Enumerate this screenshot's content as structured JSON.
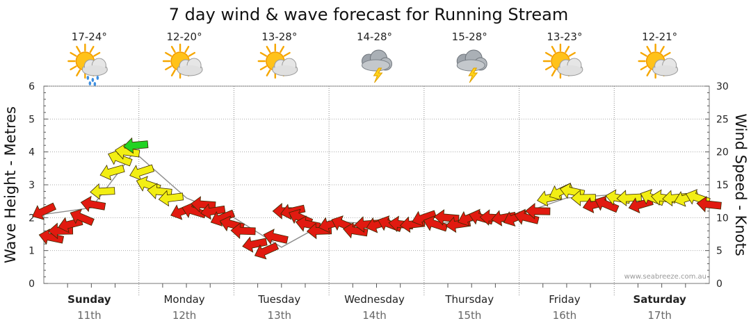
{
  "chart_data": {
    "type": "line",
    "title": "7 day wind & wave forecast for Running Stream",
    "ylabel_left": "Wave Height - Metres",
    "ylabel_right": "Wind Speed - Knots",
    "ylim_left": [
      0,
      6
    ],
    "ylim_right": [
      0,
      30
    ],
    "yticks_left": [
      "0",
      "1",
      "2",
      "3",
      "4",
      "5",
      "6"
    ],
    "yticks_right": [
      "0",
      "5",
      "10",
      "15",
      "20",
      "25",
      "30"
    ],
    "credit": "www.seabreeze.com.au",
    "days": [
      {
        "name": "Sunday",
        "date": "11th",
        "bold": true,
        "temp": "17-24°",
        "icon": "sun-cloud-rain-icon"
      },
      {
        "name": "Monday",
        "date": "12th",
        "bold": false,
        "temp": "12-20°",
        "icon": "sun-cloud-icon"
      },
      {
        "name": "Tuesday",
        "date": "13th",
        "bold": false,
        "temp": "13-28°",
        "icon": "sun-cloud-icon"
      },
      {
        "name": "Wednesday",
        "date": "14th",
        "bold": false,
        "temp": "14-28°",
        "icon": "storm-cloud-icon"
      },
      {
        "name": "Thursday",
        "date": "15th",
        "bold": false,
        "temp": "15-28°",
        "icon": "storm-cloud-icon"
      },
      {
        "name": "Friday",
        "date": "16th",
        "bold": false,
        "temp": "13-23°",
        "icon": "sun-cloud-icon"
      },
      {
        "name": "Saturday",
        "date": "17th",
        "bold": true,
        "temp": "12-21°",
        "icon": "sun-cloud-icon"
      }
    ],
    "series": [
      {
        "name": "Wind Speed (knots)",
        "x_days": [
          0.0,
          0.08,
          0.18,
          0.28,
          0.4,
          0.52,
          0.62,
          0.72,
          0.8,
          0.88,
          0.97,
          1.03,
          1.1,
          1.22,
          1.34,
          1.46,
          1.58,
          1.68,
          1.78,
          1.88,
          1.98,
          2.1,
          2.22,
          2.34,
          2.44,
          2.54,
          2.62,
          2.7,
          2.78,
          2.9,
          3.02,
          3.15,
          3.28,
          3.4,
          3.52,
          3.64,
          3.76,
          3.88,
          4.0,
          4.12,
          4.24,
          4.36,
          4.48,
          4.6,
          4.72,
          4.84,
          4.96,
          5.08,
          5.2,
          5.32,
          5.44,
          5.56,
          5.68,
          5.8,
          5.92,
          6.04,
          6.16,
          6.28,
          6.4,
          6.52,
          6.64,
          6.76,
          6.88,
          7.0
        ],
        "values": [
          11,
          7,
          8,
          9,
          10,
          12,
          14,
          17,
          19,
          20,
          21,
          17,
          15,
          14,
          13,
          11,
          11,
          12,
          11,
          10,
          9,
          8,
          6,
          5,
          7,
          11,
          11,
          10,
          9,
          8,
          9,
          9,
          8,
          9,
          9,
          9,
          9,
          9,
          10,
          9,
          10,
          9,
          10,
          10,
          10,
          10,
          10,
          10,
          11,
          13,
          14,
          14,
          13,
          12,
          12,
          13,
          13,
          12,
          13,
          13,
          13,
          13,
          13,
          12
        ]
      },
      {
        "name": "Wave Height (m)",
        "x_days": [
          0.0,
          0.5,
          0.95,
          1.5,
          2.0,
          2.5,
          3.0,
          3.5,
          4.0,
          4.5,
          5.0,
          5.5,
          6.0,
          6.5,
          7.0
        ],
        "values": [
          2.1,
          2.3,
          4.0,
          2.6,
          2.0,
          1.1,
          1.9,
          1.8,
          1.8,
          1.9,
          2.1,
          2.6,
          2.7,
          2.6,
          2.5
        ]
      }
    ],
    "color_bands": [
      {
        "label": "red",
        "color": "#e11a10",
        "max_knots": 12
      },
      {
        "label": "yellow",
        "color": "#f2ee14",
        "max_knots": 20
      },
      {
        "label": "green",
        "color": "#22d322",
        "max_knots": 30
      }
    ]
  }
}
